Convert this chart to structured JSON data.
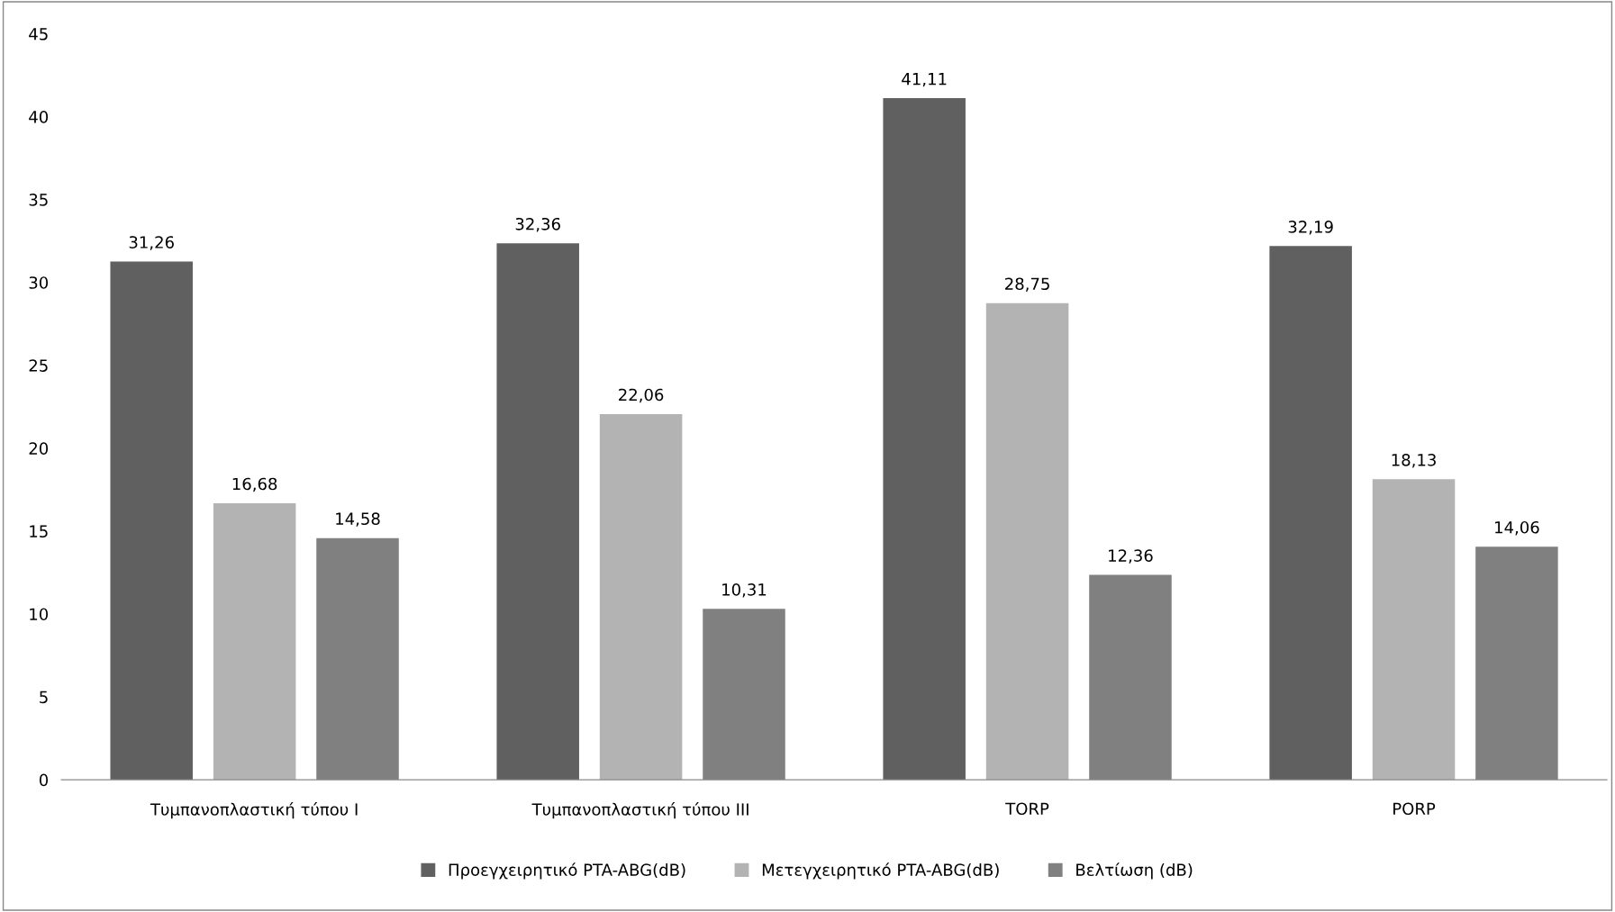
{
  "chart_data": {
    "type": "bar",
    "categories": [
      "Τυμπανοπλαστική τύπου Ι",
      "Τυμπανοπλαστική τύπου ΙΙΙ",
      "TORP",
      "PORP"
    ],
    "series": [
      {
        "name": "Προεγχειρητικό PTA-ABG(dB)",
        "color": "#606060",
        "values": [
          31.26,
          32.36,
          41.11,
          32.19
        ],
        "value_labels": [
          "31,26",
          "32,36",
          "41,11",
          "32,19"
        ]
      },
      {
        "name": "Μετεγχειρητικό PTA-ABG(dB)",
        "color": "#b3b3b3",
        "values": [
          16.68,
          22.06,
          28.75,
          18.13
        ],
        "value_labels": [
          "16,68",
          "22,06",
          "28,75",
          "18,13"
        ]
      },
      {
        "name": "Βελτίωση (dB)",
        "color": "#808080",
        "values": [
          14.58,
          10.31,
          12.36,
          14.06
        ],
        "value_labels": [
          "14,58",
          "10,31",
          "12,36",
          "14,06"
        ]
      }
    ],
    "ylim": [
      0,
      45
    ],
    "yticks": [
      0,
      5,
      10,
      15,
      20,
      25,
      30,
      35,
      40,
      45
    ],
    "grid": false,
    "legend": "bottom"
  }
}
